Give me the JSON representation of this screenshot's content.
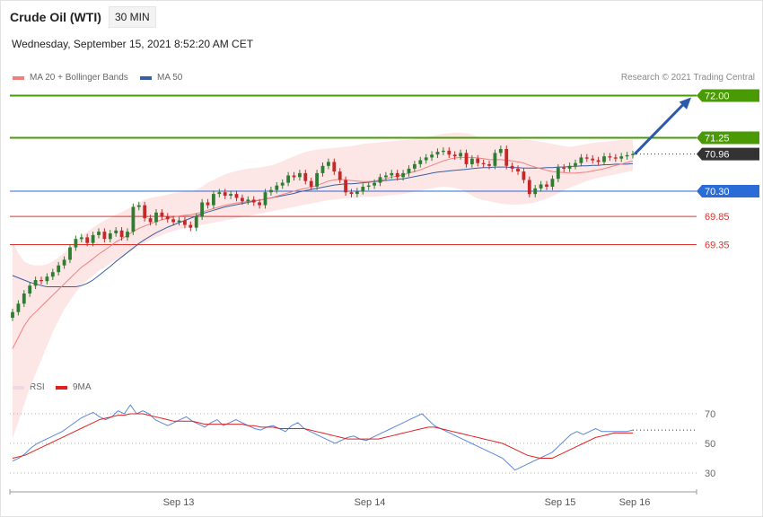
{
  "header": {
    "title": "Crude Oil (WTI)",
    "interval": "30 MIN",
    "timestamp": "Wednesday, September 15, 2021 8:52:20 AM CET"
  },
  "main_legend": {
    "ma20_label": "MA 20 + Bollinger Bands",
    "ma50_label": "MA 50",
    "credit": "Research © 2021 Trading Central"
  },
  "rsi_legend": {
    "rsi_label": "RSI",
    "ma9_label": "9MA"
  },
  "colors": {
    "green_level": "#4a9a06",
    "blue_level": "#2a6bd8",
    "red_level": "#e0312b",
    "dark_label": "#333333",
    "up_candle": "#2e7d32",
    "down_candle": "#c62828",
    "ma20": "#f08080",
    "ma50": "#3a5fa0",
    "band": "#fde3e3",
    "rsi": "#5b87d8",
    "rsi_ma": "#e02020",
    "arrow": "#2c5aa8"
  },
  "chart_data": [
    {
      "type": "candlestick",
      "title": "Crude Oil (WTI)",
      "ylim": [
        67.8,
        72.2
      ],
      "x_ticks": [
        "Sep 13",
        "Sep 14",
        "Sep 15",
        "Sep 16"
      ],
      "levels": [
        {
          "value": 72.0,
          "label": "72.00",
          "kind": "resistance-target",
          "color": "#4a9a06"
        },
        {
          "value": 71.25,
          "label": "71.25",
          "kind": "resistance",
          "color": "#4a9a06"
        },
        {
          "value": 70.96,
          "label": "70.96",
          "kind": "last-price",
          "color": "#333333"
        },
        {
          "value": 70.3,
          "label": "70.30",
          "kind": "pivot",
          "color": "#2a6bd8"
        },
        {
          "value": 69.85,
          "label": "69.85",
          "kind": "support",
          "color": "#e0312b"
        },
        {
          "value": 69.35,
          "label": "69.35",
          "kind": "support",
          "color": "#e0312b"
        }
      ],
      "close": [
        68.15,
        68.3,
        68.48,
        68.62,
        68.72,
        68.7,
        68.78,
        68.86,
        68.98,
        69.08,
        69.3,
        69.45,
        69.48,
        69.38,
        69.52,
        69.58,
        69.45,
        69.55,
        69.6,
        69.48,
        69.58,
        70.02,
        70.05,
        69.82,
        69.75,
        69.92,
        69.85,
        69.8,
        69.75,
        69.78,
        69.7,
        69.65,
        69.85,
        70.1,
        70.05,
        70.25,
        70.28,
        70.22,
        70.25,
        70.18,
        70.12,
        70.15,
        70.1,
        70.05,
        70.28,
        70.32,
        70.4,
        70.45,
        70.58,
        70.55,
        70.62,
        70.48,
        70.38,
        70.62,
        70.75,
        70.82,
        70.65,
        70.5,
        70.28,
        70.25,
        70.3,
        70.38,
        70.4,
        70.45,
        70.55,
        70.58,
        70.62,
        70.55,
        70.62,
        70.7,
        70.78,
        70.85,
        70.9,
        70.95,
        71.0,
        71.02,
        70.95,
        70.92,
        70.98,
        70.78,
        70.88,
        70.8,
        70.78,
        70.75,
        70.98,
        71.05,
        70.75,
        70.7,
        70.65,
        70.5,
        70.25,
        70.35,
        70.42,
        70.38,
        70.52,
        70.72,
        70.7,
        70.75,
        70.8,
        70.9,
        70.88,
        70.85,
        70.82,
        70.92,
        70.9,
        70.88,
        70.92,
        70.94,
        70.96
      ],
      "ma20": [
        67.5,
        67.7,
        67.9,
        68.05,
        68.15,
        68.25,
        68.35,
        68.45,
        68.55,
        68.65,
        68.75,
        68.85,
        68.95,
        69.02,
        69.1,
        69.18,
        69.25,
        69.32,
        69.4,
        69.45,
        69.52,
        69.58,
        69.64,
        69.68,
        69.72,
        69.76,
        69.79,
        69.82,
        69.84,
        69.86,
        69.87,
        69.88,
        69.9,
        69.93,
        69.96,
        69.99,
        70.02,
        70.05,
        70.07,
        70.09,
        70.1,
        70.12,
        70.13,
        70.14,
        70.16,
        70.18,
        70.21,
        70.24,
        70.27,
        70.3,
        70.33,
        70.35,
        70.37,
        70.4,
        70.44,
        70.48,
        70.5,
        70.51,
        70.5,
        70.49,
        70.48,
        70.47,
        70.47,
        70.48,
        70.5,
        70.52,
        70.55,
        70.57,
        70.59,
        70.62,
        70.65,
        70.68,
        70.72,
        70.76,
        70.8,
        70.84,
        70.87,
        70.89,
        70.9,
        70.9,
        70.9,
        70.89,
        70.88,
        70.86,
        70.86,
        70.86,
        70.85,
        70.84,
        70.82,
        70.8,
        70.76,
        70.73,
        70.7,
        70.67,
        70.65,
        70.64,
        70.63,
        70.62,
        70.62,
        70.63,
        70.64,
        70.66,
        70.68,
        70.7,
        70.73,
        70.76,
        70.78,
        70.81,
        70.84
      ],
      "ma50": [
        68.8,
        68.76,
        68.72,
        68.68,
        68.65,
        68.62,
        68.6,
        68.6,
        68.6,
        68.6,
        68.6,
        68.6,
        68.62,
        68.66,
        68.72,
        68.8,
        68.88,
        68.96,
        69.05,
        69.13,
        69.21,
        69.29,
        69.37,
        69.44,
        69.5,
        69.56,
        69.61,
        69.66,
        69.7,
        69.74,
        69.78,
        69.82,
        69.86,
        69.9,
        69.93,
        69.96,
        69.99,
        70.02,
        70.04,
        70.06,
        70.08,
        70.1,
        70.12,
        70.14,
        70.16,
        70.18,
        70.2,
        70.22,
        70.24,
        70.26,
        70.29,
        70.31,
        70.33,
        70.35,
        70.37,
        70.39,
        70.41,
        70.42,
        70.43,
        70.43,
        70.44,
        70.45,
        70.46,
        70.47,
        70.48,
        70.49,
        70.5,
        70.51,
        70.52,
        70.54,
        70.56,
        70.58,
        70.6,
        70.62,
        70.64,
        70.65,
        70.66,
        70.67,
        70.68,
        70.69,
        70.7,
        70.71,
        70.72,
        70.72,
        70.73,
        70.73,
        70.73,
        70.72,
        70.72,
        70.71,
        70.71,
        70.71,
        70.71,
        70.72,
        70.72,
        70.73,
        70.73,
        70.74,
        70.74,
        70.75,
        70.75,
        70.76,
        70.76,
        70.77,
        70.77,
        70.78,
        70.78,
        70.78,
        70.79
      ],
      "band_upper": [
        69.4,
        69.2,
        69.05,
        69.0,
        68.98,
        68.98,
        69.0,
        69.05,
        69.12,
        69.2,
        69.3,
        69.4,
        69.5,
        69.58,
        69.65,
        69.72,
        69.78,
        69.83,
        69.88,
        69.93,
        69.98,
        70.04,
        70.1,
        70.15,
        70.18,
        70.2,
        70.22,
        70.24,
        70.26,
        70.28,
        70.29,
        70.3,
        70.33,
        70.38,
        70.45,
        70.5,
        70.55,
        70.6,
        70.63,
        70.66,
        70.68,
        70.7,
        70.71,
        70.72,
        70.74,
        70.76,
        70.79,
        70.83,
        70.88,
        70.92,
        70.96,
        71.0,
        71.02,
        71.04,
        71.05,
        71.06,
        71.07,
        71.08,
        71.09,
        71.1,
        71.12,
        71.14,
        71.15,
        71.16,
        71.17,
        71.18,
        71.19,
        71.2,
        71.21,
        71.22,
        71.23,
        71.24,
        71.26,
        71.28,
        71.3,
        71.32,
        71.33,
        71.34,
        71.34,
        71.33,
        71.3,
        71.27,
        71.25,
        71.24,
        71.24,
        71.24,
        71.24,
        71.24,
        71.23,
        71.22,
        71.21,
        71.2,
        71.18,
        71.16,
        71.14,
        71.12,
        71.1,
        71.09,
        71.1,
        71.12,
        71.14,
        71.16,
        71.17,
        71.18,
        71.19,
        71.2,
        71.21,
        71.22,
        71.22
      ],
      "band_lower": [
        65.9,
        66.2,
        66.5,
        66.8,
        67.05,
        67.3,
        67.55,
        67.8,
        68.0,
        68.2,
        68.35,
        68.5,
        68.62,
        68.72,
        68.8,
        68.88,
        68.95,
        69.02,
        69.08,
        69.14,
        69.2,
        69.26,
        69.32,
        69.38,
        69.43,
        69.48,
        69.52,
        69.56,
        69.59,
        69.62,
        69.64,
        69.66,
        69.68,
        69.7,
        69.72,
        69.74,
        69.76,
        69.78,
        69.8,
        69.82,
        69.84,
        69.86,
        69.88,
        69.9,
        69.92,
        69.94,
        69.96,
        69.98,
        70.0,
        70.02,
        70.04,
        70.06,
        70.08,
        70.1,
        70.12,
        70.14,
        70.15,
        70.16,
        70.17,
        70.18,
        70.19,
        70.2,
        70.2,
        70.2,
        70.21,
        70.22,
        70.23,
        70.24,
        70.25,
        70.27,
        70.29,
        70.31,
        70.33,
        70.35,
        70.37,
        70.38,
        70.37,
        70.36,
        70.33,
        70.28,
        70.22,
        70.17,
        70.14,
        70.12,
        70.1,
        70.08,
        70.07,
        70.06,
        70.06,
        70.07,
        70.08,
        70.1,
        70.13,
        70.17,
        70.21,
        70.26,
        70.31,
        70.36,
        70.4,
        70.44,
        70.48,
        70.51,
        70.54,
        70.56,
        70.58,
        70.6,
        70.62,
        70.64,
        70.66
      ]
    },
    {
      "type": "line",
      "title": "RSI",
      "ylim": [
        20,
        80
      ],
      "y_ticks": [
        70,
        50,
        30
      ],
      "series": [
        {
          "name": "RSI",
          "values": [
            38,
            40,
            43,
            47,
            50,
            52,
            54,
            56,
            58,
            61,
            64,
            67,
            69,
            71,
            68,
            66,
            68,
            72,
            70,
            76,
            70,
            72,
            70,
            66,
            64,
            62,
            64,
            66,
            68,
            65,
            63,
            61,
            64,
            66,
            62,
            64,
            66,
            64,
            62,
            60,
            59,
            61,
            62,
            60,
            58,
            62,
            64,
            60,
            58,
            56,
            54,
            52,
            50,
            52,
            54,
            55,
            53,
            52,
            54,
            56,
            58,
            60,
            62,
            64,
            66,
            68,
            70,
            66,
            62,
            60,
            58,
            56,
            54,
            52,
            50,
            48,
            46,
            44,
            42,
            40,
            36,
            32,
            34,
            36,
            38,
            40,
            42,
            44,
            48,
            52,
            56,
            58,
            56,
            58,
            60,
            58,
            58,
            58,
            58,
            58,
            59
          ]
        },
        {
          "name": "9MA",
          "values": [
            40,
            41,
            42,
            44,
            46,
            48,
            50,
            52,
            54,
            56,
            58,
            60,
            62,
            64,
            66,
            67,
            68,
            69,
            69,
            70,
            70,
            70,
            69,
            68,
            67,
            66,
            65,
            65,
            65,
            65,
            64,
            63,
            63,
            63,
            63,
            63,
            63,
            63,
            62,
            62,
            61,
            61,
            61,
            60,
            60,
            60,
            60,
            60,
            59,
            58,
            57,
            56,
            55,
            54,
            53,
            53,
            53,
            53,
            53,
            53,
            54,
            55,
            56,
            57,
            58,
            59,
            60,
            61,
            61,
            60,
            59,
            58,
            57,
            56,
            55,
            54,
            53,
            52,
            51,
            50,
            48,
            46,
            44,
            42,
            41,
            40,
            40,
            40,
            42,
            44,
            46,
            48,
            50,
            52,
            54,
            55,
            56,
            57,
            57,
            57,
            57
          ]
        }
      ]
    }
  ]
}
